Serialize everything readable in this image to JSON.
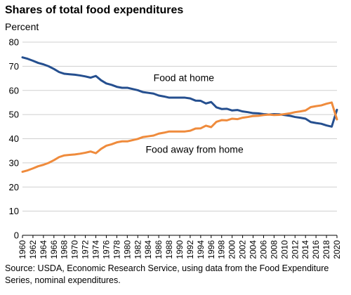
{
  "chart_data": {
    "type": "line",
    "title": "Shares of total food expenditures",
    "ylabel": "Percent",
    "xlabel": "",
    "ylim": [
      0,
      80
    ],
    "yticks": [
      0,
      10,
      20,
      30,
      40,
      50,
      60,
      70,
      80
    ],
    "xlim": [
      1960,
      2020
    ],
    "xticks": [
      1960,
      1962,
      1964,
      1966,
      1968,
      1970,
      1972,
      1974,
      1976,
      1978,
      1980,
      1982,
      1984,
      1986,
      1988,
      1990,
      1992,
      1994,
      1996,
      1998,
      2000,
      2002,
      2004,
      2006,
      2008,
      2010,
      2012,
      2014,
      2016,
      2018,
      2020
    ],
    "grid": "horizontal",
    "colors": {
      "home": "#254f8f",
      "away": "#ef8b3c",
      "grid": "#cfcfcf"
    },
    "x": [
      1960,
      1961,
      1962,
      1963,
      1964,
      1965,
      1966,
      1967,
      1968,
      1969,
      1970,
      1971,
      1972,
      1973,
      1974,
      1975,
      1976,
      1977,
      1978,
      1979,
      1980,
      1981,
      1982,
      1983,
      1984,
      1985,
      1986,
      1987,
      1988,
      1989,
      1990,
      1991,
      1992,
      1993,
      1994,
      1995,
      1996,
      1997,
      1998,
      1999,
      2000,
      2001,
      2002,
      2003,
      2004,
      2005,
      2006,
      2007,
      2008,
      2009,
      2010,
      2011,
      2012,
      2013,
      2014,
      2015,
      2016,
      2017,
      2018,
      2019,
      2020
    ],
    "series": [
      {
        "name": "Food at home",
        "color": "#254f8f",
        "values": [
          73.7,
          73.1,
          72.3,
          71.4,
          70.8,
          70.0,
          68.9,
          67.6,
          66.9,
          66.7,
          66.5,
          66.2,
          65.8,
          65.3,
          66.0,
          64.2,
          62.9,
          62.3,
          61.5,
          61.1,
          61.1,
          60.6,
          60.1,
          59.3,
          59.0,
          58.7,
          57.9,
          57.5,
          57.0,
          57.0,
          57.0,
          57.0,
          56.7,
          55.8,
          55.7,
          54.6,
          55.2,
          53.0,
          52.3,
          52.4,
          51.7,
          51.9,
          51.3,
          51.0,
          50.6,
          50.5,
          50.2,
          50.0,
          50.2,
          50.1,
          49.8,
          49.5,
          49.0,
          48.7,
          48.3,
          46.9,
          46.5,
          46.2,
          45.5,
          45.0,
          52.0
        ]
      },
      {
        "name": "Food away from home",
        "color": "#ef8b3c",
        "values": [
          26.3,
          26.9,
          27.7,
          28.6,
          29.2,
          30.0,
          31.1,
          32.4,
          33.1,
          33.3,
          33.5,
          33.8,
          34.2,
          34.7,
          34.0,
          35.8,
          37.1,
          37.7,
          38.5,
          38.9,
          38.9,
          39.4,
          39.9,
          40.7,
          41.0,
          41.3,
          42.1,
          42.5,
          43.0,
          43.0,
          43.0,
          43.0,
          43.3,
          44.2,
          44.3,
          45.4,
          44.8,
          47.0,
          47.7,
          47.6,
          48.3,
          48.1,
          48.7,
          49.0,
          49.4,
          49.5,
          49.8,
          50.0,
          49.8,
          49.9,
          50.2,
          50.5,
          51.0,
          51.3,
          51.7,
          53.1,
          53.5,
          53.8,
          54.5,
          55.0,
          48.0
        ]
      }
    ],
    "annotations": [
      {
        "text": "Food at home",
        "x": 1985,
        "y": 63.8
      },
      {
        "text": "Food away from home",
        "x": 1983.5,
        "y": 34.2
      }
    ],
    "source": "Source: USDA, Economic Research Service, using data from the Food Expenditure Series, nominal expenditures."
  }
}
